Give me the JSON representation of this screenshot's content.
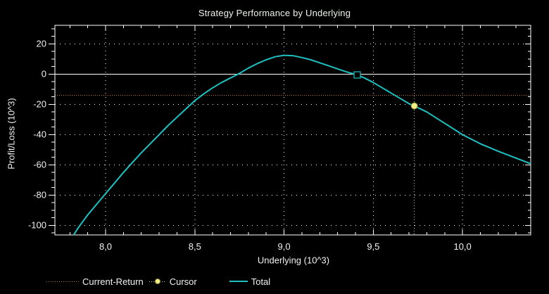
{
  "title": "Strategy Performance by Underlying",
  "legend": {
    "items": [
      {
        "label": "Current-Return",
        "style": "dotted-line",
        "color": "#c0783c"
      },
      {
        "label": "Cursor",
        "style": "dotted-line-with-dot",
        "color": "#f3ef86"
      },
      {
        "label": "Total",
        "style": "solid-line",
        "color": "#1ec0c0"
      }
    ],
    "position": "bottom-left"
  },
  "colors": {
    "background": "#000000",
    "axis": "#ffffff",
    "grid_dots": "#ffffff",
    "zero_line": "#ffffff",
    "total_line": "#1ec0c0",
    "current_return_line": "#c0783c",
    "cursor_line": "#d8d890",
    "cursor_point_fill": "#f3ef86",
    "text": "#f1f1f1"
  },
  "chart_data": {
    "type": "line",
    "title": "Strategy Performance by Underlying",
    "xlabel": "Underlying (10^3)",
    "ylabel": "Profit/Loss (10^3)",
    "xlim": [
      7.716,
      10.382
    ],
    "ylim": [
      -106.3,
      32.3
    ],
    "x_ticks": [
      {
        "value": 8.0,
        "label": "8,0"
      },
      {
        "value": 8.5,
        "label": "8,5"
      },
      {
        "value": 9.0,
        "label": "9,0"
      },
      {
        "value": 9.5,
        "label": "9,5"
      },
      {
        "value": 10.0,
        "label": "10,0"
      }
    ],
    "x_minor_step": 0.1,
    "y_ticks": [
      20,
      0,
      -20,
      -40,
      -60,
      -80,
      -100
    ],
    "y_minor_step": 5,
    "grid": "dotted gridlines at major ticks, solid white line at y=0, full frame with inward minor ticks",
    "legend_position": "bottom-left",
    "series": [
      {
        "name": "Total",
        "color": "#1ec0c0",
        "style": "solid",
        "points": [
          [
            7.79,
            -112
          ],
          [
            7.85,
            -101
          ],
          [
            7.9,
            -93
          ],
          [
            7.95,
            -86
          ],
          [
            8.0,
            -79
          ],
          [
            8.05,
            -72
          ],
          [
            8.1,
            -65
          ],
          [
            8.15,
            -58.5
          ],
          [
            8.2,
            -52
          ],
          [
            8.25,
            -46
          ],
          [
            8.3,
            -40
          ],
          [
            8.35,
            -34
          ],
          [
            8.4,
            -28.5
          ],
          [
            8.45,
            -23
          ],
          [
            8.5,
            -17.5
          ],
          [
            8.55,
            -13
          ],
          [
            8.6,
            -9
          ],
          [
            8.65,
            -5.5
          ],
          [
            8.7,
            -2.5
          ],
          [
            8.75,
            0.5
          ],
          [
            8.8,
            4
          ],
          [
            8.85,
            7
          ],
          [
            8.9,
            9.5
          ],
          [
            8.95,
            11.5
          ],
          [
            9.0,
            12.5
          ],
          [
            9.05,
            12.2
          ],
          [
            9.1,
            11
          ],
          [
            9.15,
            9.5
          ],
          [
            9.2,
            7.5
          ],
          [
            9.25,
            5.5
          ],
          [
            9.3,
            3.5
          ],
          [
            9.35,
            1.5
          ],
          [
            9.41,
            -0.5
          ],
          [
            9.45,
            -2.5
          ],
          [
            9.5,
            -5.5
          ],
          [
            9.55,
            -9
          ],
          [
            9.6,
            -12.5
          ],
          [
            9.65,
            -16
          ],
          [
            9.7,
            -19.5
          ],
          [
            9.73,
            -21
          ],
          [
            9.8,
            -25
          ],
          [
            9.9,
            -32.5
          ],
          [
            10.0,
            -40
          ],
          [
            10.1,
            -46
          ],
          [
            10.2,
            -51
          ],
          [
            10.3,
            -55.5
          ],
          [
            10.4,
            -60
          ]
        ]
      },
      {
        "name": "Current-Return",
        "color": "#c0783c",
        "style": "horizontal-dotted",
        "y": -14
      },
      {
        "name": "Cursor",
        "color": "#f3ef86",
        "style": "vertical-dotted-line-with-point",
        "x": 9.73,
        "y": -21
      }
    ],
    "annotations": [
      {
        "name": "breakeven-marker",
        "shape": "open-square",
        "color": "#1ec0c0",
        "x": 9.41,
        "y": -0.5
      }
    ]
  }
}
